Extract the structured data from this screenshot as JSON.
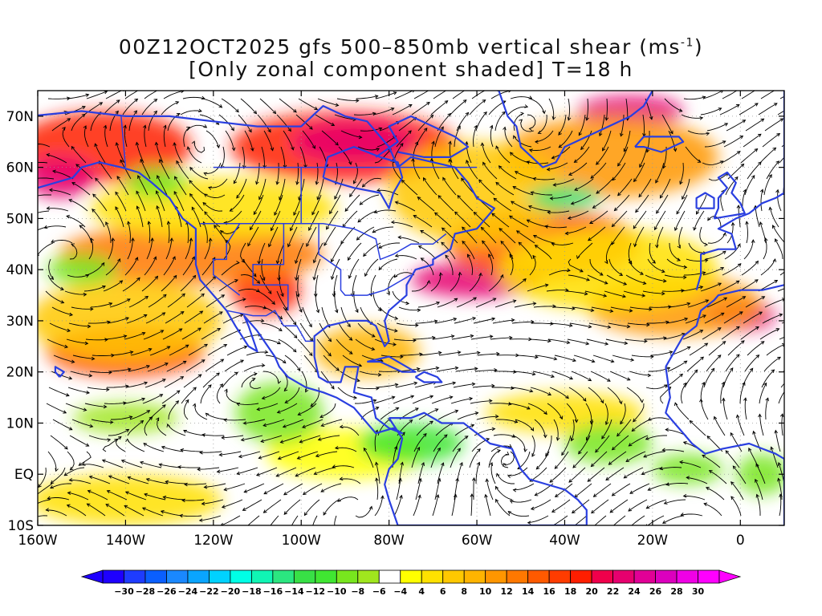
{
  "title": {
    "line1_prefix": "00Z12OCT2025 gfs 500–850mb vertical shear (ms",
    "line1_exponent": "-1",
    "line1_suffix": ")",
    "line2": "[Only zonal component shaded] T=18 h"
  },
  "map": {
    "lon_range": [
      -160,
      10
    ],
    "lat_range": [
      -10,
      75
    ],
    "x_ticks": [
      {
        "value": -160,
        "label": "160W"
      },
      {
        "value": -140,
        "label": "140W"
      },
      {
        "value": -120,
        "label": "120W"
      },
      {
        "value": -100,
        "label": "100W"
      },
      {
        "value": -80,
        "label": "80W"
      },
      {
        "value": -60,
        "label": "60W"
      },
      {
        "value": -40,
        "label": "40W"
      },
      {
        "value": -20,
        "label": "20W"
      },
      {
        "value": 0,
        "label": "0"
      }
    ],
    "y_ticks": [
      {
        "value": -10,
        "label": "10S"
      },
      {
        "value": 0,
        "label": "EQ"
      },
      {
        "value": 10,
        "label": "10N"
      },
      {
        "value": 20,
        "label": "20N"
      },
      {
        "value": 30,
        "label": "30N"
      },
      {
        "value": 40,
        "label": "40N"
      },
      {
        "value": 50,
        "label": "50N"
      },
      {
        "value": 60,
        "label": "60N"
      },
      {
        "value": 70,
        "label": "70N"
      }
    ],
    "coastline_color": "#2a3fe0",
    "streamline_color": "#000000"
  },
  "colorbar": {
    "levels": [
      -30,
      -28,
      -26,
      -24,
      -22,
      -20,
      -18,
      -16,
      -14,
      -12,
      -10,
      -8,
      -6,
      -4,
      4,
      6,
      8,
      10,
      12,
      14,
      16,
      18,
      20,
      22,
      24,
      26,
      28,
      30
    ],
    "colors": [
      "#1e00ff",
      "#1e3cff",
      "#0a5fff",
      "#1a88ff",
      "#0aa5ff",
      "#00d2ff",
      "#00ffe6",
      "#10f5b4",
      "#2be680",
      "#38e046",
      "#40e632",
      "#78e61e",
      "#a0e61e",
      "#ffffff",
      "#ffff00",
      "#ffe100",
      "#ffc800",
      "#ffb400",
      "#ff9600",
      "#ff7800",
      "#ff5a00",
      "#ff3c00",
      "#ff1e00",
      "#f0004b",
      "#e6006e",
      "#e10096",
      "#dc00be",
      "#f000e6",
      "#ff00ff"
    ]
  },
  "shading_blobs": [
    {
      "lon": -145,
      "lat": 64,
      "rx": 20,
      "ry": 7,
      "color": "#ff1e00"
    },
    {
      "lon": -155,
      "lat": 58,
      "rx": 8,
      "ry": 4,
      "color": "#e6006e"
    },
    {
      "lon": -90,
      "lat": 64,
      "rx": 26,
      "ry": 7,
      "color": "#ff1e00"
    },
    {
      "lon": -88,
      "lat": 65,
      "rx": 14,
      "ry": 4,
      "color": "#e6006e"
    },
    {
      "lon": -60,
      "lat": 38,
      "rx": 15,
      "ry": 3.5,
      "color": "#e6006e"
    },
    {
      "lon": -108,
      "lat": 36,
      "rx": 8,
      "ry": 5,
      "color": "#ff1e00"
    },
    {
      "lon": -140,
      "lat": 24,
      "rx": 18,
      "ry": 5,
      "color": "#ff3c00"
    },
    {
      "lon": 0,
      "lat": 31,
      "rx": 8,
      "ry": 3,
      "color": "#e6006e"
    },
    {
      "lon": -25,
      "lat": 71,
      "rx": 12,
      "ry": 3,
      "color": "#e6006e"
    },
    {
      "lon": -125,
      "lat": 43,
      "rx": 30,
      "ry": 6,
      "color": "#ff7800"
    },
    {
      "lon": -45,
      "lat": 45,
      "rx": 22,
      "ry": 7,
      "color": "#ff5a00"
    },
    {
      "lon": -30,
      "lat": 62,
      "rx": 25,
      "ry": 8,
      "color": "#ff9600"
    },
    {
      "lon": -15,
      "lat": 33,
      "rx": 20,
      "ry": 6,
      "color": "#ff9600"
    },
    {
      "lon": -85,
      "lat": 24,
      "rx": 12,
      "ry": 5,
      "color": "#ffb400"
    },
    {
      "lon": -140,
      "lat": 30,
      "rx": 22,
      "ry": 8,
      "color": "#ffc800"
    },
    {
      "lon": -120,
      "lat": 52,
      "rx": 28,
      "ry": 6,
      "color": "#ffe100"
    },
    {
      "lon": -60,
      "lat": 55,
      "rx": 20,
      "ry": 10,
      "color": "#ffc800"
    },
    {
      "lon": -30,
      "lat": 40,
      "rx": 25,
      "ry": 8,
      "color": "#ffe100"
    },
    {
      "lon": -140,
      "lat": -5,
      "rx": 22,
      "ry": 5,
      "color": "#ffe100"
    },
    {
      "lon": -90,
      "lat": 4,
      "rx": 18,
      "ry": 5,
      "color": "#ffff00"
    },
    {
      "lon": -40,
      "lat": 12,
      "rx": 18,
      "ry": 4,
      "color": "#ffe100"
    },
    {
      "lon": -150,
      "lat": 40,
      "rx": 8,
      "ry": 3,
      "color": "#78e61e"
    },
    {
      "lon": -105,
      "lat": 12,
      "rx": 10,
      "ry": 6,
      "color": "#78e61e"
    },
    {
      "lon": -75,
      "lat": 6,
      "rx": 12,
      "ry": 4,
      "color": "#40e632"
    },
    {
      "lon": -30,
      "lat": 6,
      "rx": 10,
      "ry": 4,
      "color": "#78e61e"
    },
    {
      "lon": -12,
      "lat": 1,
      "rx": 8,
      "ry": 3,
      "color": "#78e61e"
    },
    {
      "lon": -40,
      "lat": 54,
      "rx": 8,
      "ry": 2.5,
      "color": "#2be680"
    },
    {
      "lon": -133,
      "lat": 57,
      "rx": 7,
      "ry": 3,
      "color": "#78e61e"
    },
    {
      "lon": -140,
      "lat": 11,
      "rx": 12,
      "ry": 3,
      "color": "#a0e61e"
    },
    {
      "lon": 5,
      "lat": 0,
      "rx": 6,
      "ry": 4,
      "color": "#78e61e"
    }
  ]
}
